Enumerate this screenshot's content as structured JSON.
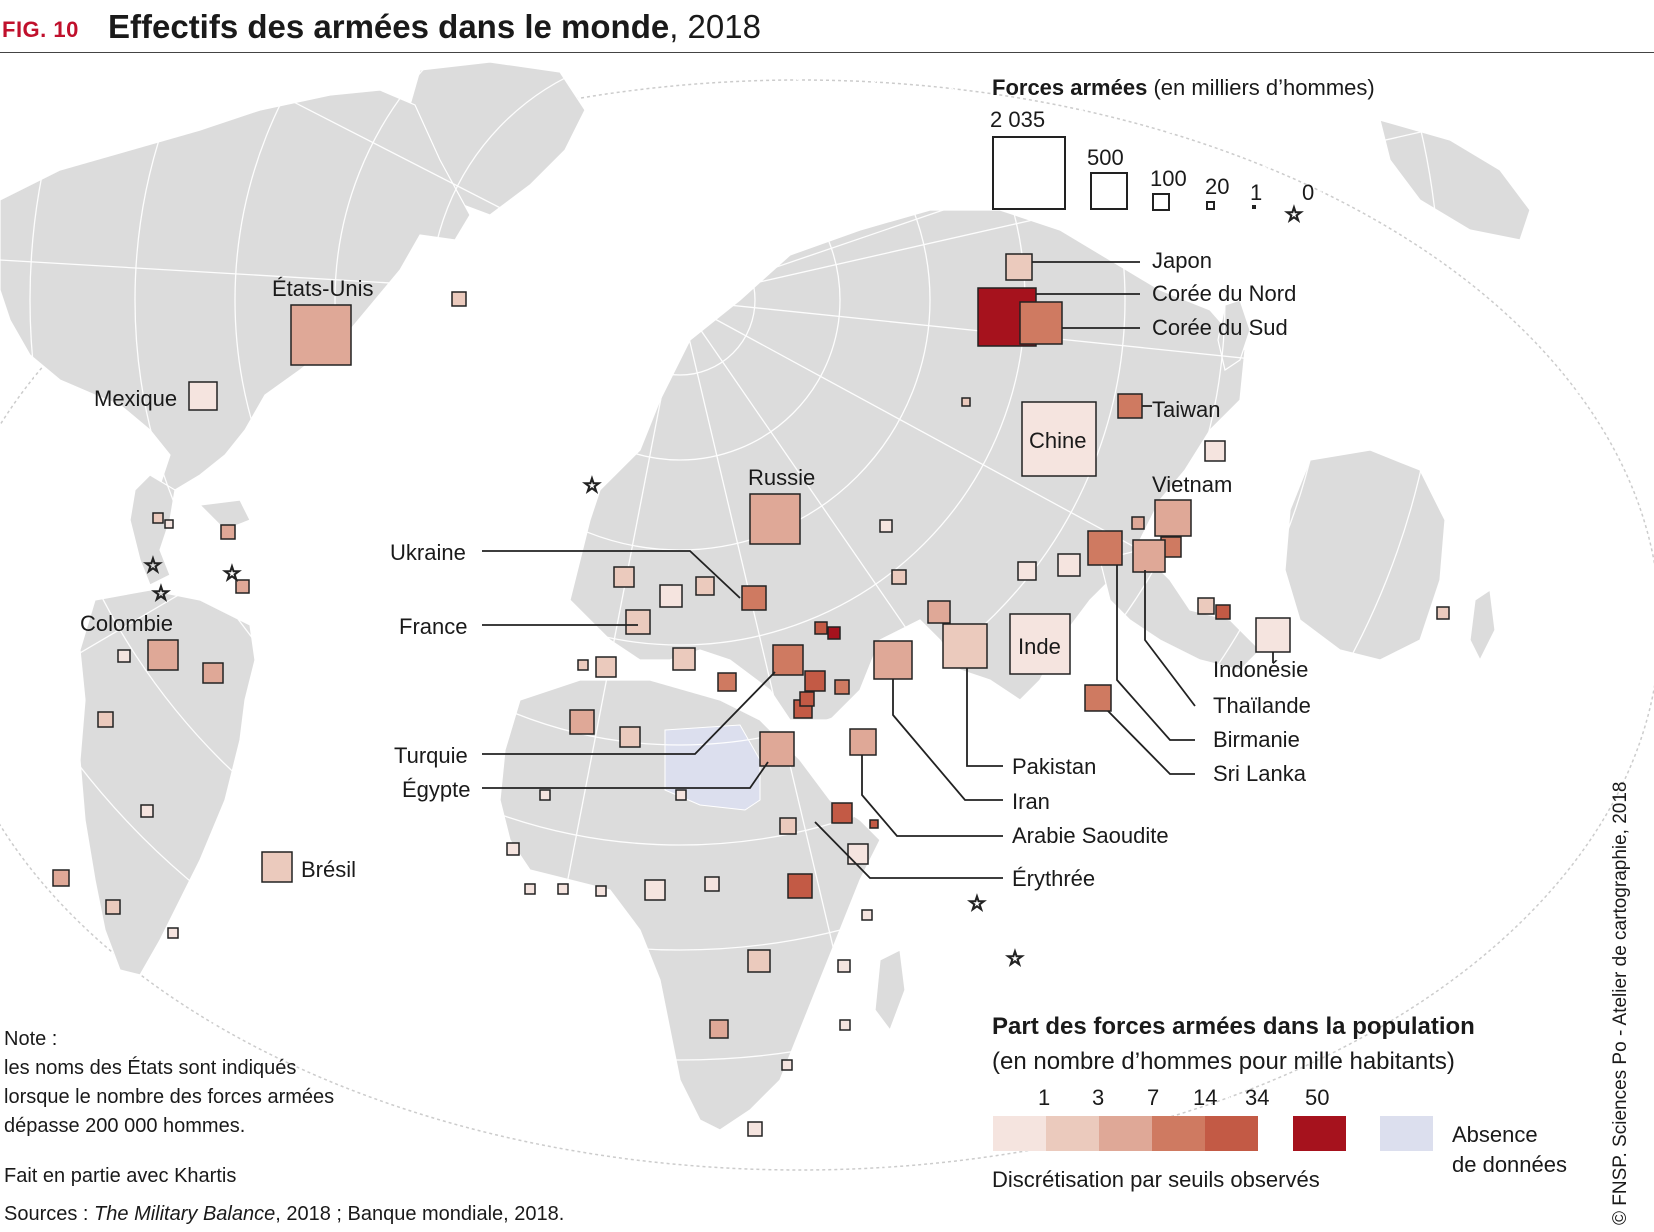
{
  "header": {
    "fig": "FIG. 10",
    "title": "Effectifs des armées dans le monde",
    "year": ", 2018"
  },
  "countries": {
    "etats_unis": "États-Unis",
    "mexique": "Mexique",
    "colombie": "Colombie",
    "bresil": "Brésil",
    "russie": "Russie",
    "ukraine": "Ukraine",
    "france": "France",
    "turquie": "Turquie",
    "egypte": "Égypte",
    "chine": "Chine",
    "inde": "Inde",
    "japon": "Japon",
    "coree_nord": "Corée du Nord",
    "coree_sud": "Corée du Sud",
    "taiwan": "Taiwan",
    "vietnam": "Vietnam",
    "indonesie": "Indonésie",
    "thailande": "Thaïlande",
    "birmanie": "Birmanie",
    "sri_lanka": "Sri Lanka",
    "pakistan": "Pakistan",
    "iran": "Iran",
    "arabie": "Arabie Saoudite",
    "erythree": "Érythrée"
  },
  "legend_size": {
    "title": "Forces armées",
    "unit": " (en milliers d’hommes)",
    "values": [
      "2 035",
      "500",
      "100",
      "20",
      "1",
      "0"
    ]
  },
  "legend_color": {
    "title": "Part des forces armées dans la population",
    "subtitle": "(en nombre d’hommes pour mille habitants)",
    "thresholds": [
      "1",
      "3",
      "7",
      "14",
      "34",
      "50"
    ],
    "colors": [
      "#f5e4df",
      "#ebcabd",
      "#dfa897",
      "#cf7a61",
      "#c35a45",
      "#a6121d"
    ],
    "no_data_color": "#dcdfee",
    "no_data_label_1": "Absence",
    "no_data_label_2": "de données",
    "method": "Discrétisation par seuils observés"
  },
  "note": {
    "title": "Note :",
    "line1": "les noms des États sont indiqués",
    "line2": "lorsque le nombre des forces armées",
    "line3": "dépasse 200 000 hommes.",
    "khartis": "Fait en partie avec Khartis",
    "sources_prefix": "Sources : ",
    "sources_italic": "The Military Balance",
    "sources_suffix": ", 2018 ; Banque mondiale, 2018."
  },
  "credit": "© FNSP. Sciences Po - Atelier de cartographie, 2018",
  "colors": {
    "land": "#dcdcdc",
    "graticule": "#ffffff",
    "accent": "#c0102c"
  }
}
